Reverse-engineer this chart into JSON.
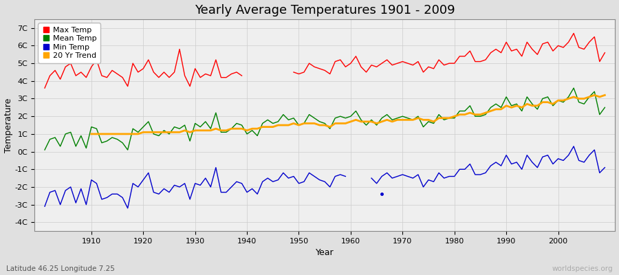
{
  "title": "Yearly Average Temperatures 1901 - 2009",
  "xlabel": "Year",
  "ylabel": "Temperature",
  "subtitle_left": "Latitude 46.25 Longitude 7.25",
  "subtitle_right": "worldspecies.org",
  "years": [
    1901,
    1902,
    1903,
    1904,
    1905,
    1906,
    1907,
    1908,
    1909,
    1910,
    1911,
    1912,
    1913,
    1914,
    1915,
    1916,
    1917,
    1918,
    1919,
    1920,
    1921,
    1922,
    1923,
    1924,
    1925,
    1926,
    1927,
    1928,
    1929,
    1930,
    1931,
    1932,
    1933,
    1934,
    1935,
    1936,
    1937,
    1938,
    1939,
    1940,
    1941,
    1942,
    1943,
    1944,
    1945,
    1946,
    1947,
    1948,
    1949,
    1950,
    1951,
    1952,
    1953,
    1954,
    1955,
    1956,
    1957,
    1958,
    1959,
    1960,
    1961,
    1962,
    1963,
    1964,
    1965,
    1966,
    1967,
    1968,
    1969,
    1970,
    1971,
    1972,
    1973,
    1974,
    1975,
    1976,
    1977,
    1978,
    1979,
    1980,
    1981,
    1982,
    1983,
    1984,
    1985,
    1986,
    1987,
    1988,
    1989,
    1990,
    1991,
    1992,
    1993,
    1994,
    1995,
    1996,
    1997,
    1998,
    1999,
    2000,
    2001,
    2002,
    2003,
    2004,
    2005,
    2006,
    2007,
    2008,
    2009
  ],
  "max_temp": [
    3.6,
    4.3,
    4.6,
    4.1,
    4.8,
    5.0,
    4.3,
    4.5,
    4.2,
    4.8,
    5.2,
    4.3,
    4.2,
    4.6,
    4.4,
    4.2,
    3.7,
    5.0,
    4.5,
    4.7,
    5.2,
    4.5,
    4.2,
    4.5,
    4.2,
    4.5,
    5.8,
    4.3,
    3.7,
    4.7,
    4.2,
    4.4,
    4.3,
    5.2,
    4.2,
    4.2,
    4.4,
    4.5,
    4.3,
    null,
    null,
    null,
    null,
    null,
    null,
    null,
    null,
    null,
    4.5,
    4.4,
    4.5,
    5.0,
    4.8,
    4.7,
    4.6,
    4.4,
    5.1,
    5.2,
    4.8,
    5.0,
    5.4,
    4.8,
    4.5,
    4.9,
    4.8,
    5.0,
    5.2,
    4.9,
    5.0,
    5.1,
    5.0,
    4.9,
    5.1,
    4.5,
    4.8,
    4.7,
    5.2,
    4.9,
    5.0,
    5.0,
    5.4,
    5.4,
    5.7,
    5.1,
    5.1,
    5.2,
    5.6,
    5.8,
    5.6,
    6.2,
    5.7,
    5.8,
    5.4,
    6.2,
    5.8,
    5.5,
    6.1,
    6.2,
    5.7,
    6.0,
    5.9,
    6.2,
    6.7,
    5.9,
    5.8,
    6.2,
    6.5,
    5.1,
    5.6
  ],
  "mean_temp": [
    0.1,
    0.7,
    0.8,
    0.3,
    1.0,
    1.1,
    0.3,
    0.9,
    0.2,
    1.4,
    1.3,
    0.5,
    0.6,
    0.8,
    0.7,
    0.5,
    0.1,
    1.3,
    1.1,
    1.4,
    1.7,
    1.0,
    0.9,
    1.2,
    1.0,
    1.4,
    1.3,
    1.5,
    0.6,
    1.6,
    1.4,
    1.7,
    1.3,
    2.2,
    1.1,
    1.1,
    1.3,
    1.6,
    1.5,
    1.0,
    1.2,
    0.9,
    1.6,
    1.8,
    1.6,
    1.7,
    2.1,
    1.8,
    1.9,
    1.5,
    1.6,
    2.1,
    1.9,
    1.7,
    1.6,
    1.3,
    1.9,
    2.0,
    1.9,
    2.0,
    2.3,
    1.8,
    1.5,
    1.8,
    1.5,
    1.9,
    2.1,
    1.8,
    1.9,
    2.0,
    1.9,
    1.8,
    2.0,
    1.4,
    1.7,
    1.6,
    2.1,
    1.8,
    1.9,
    1.9,
    2.3,
    2.3,
    2.6,
    2.0,
    2.0,
    2.1,
    2.5,
    2.7,
    2.5,
    3.1,
    2.6,
    2.7,
    2.3,
    3.1,
    2.7,
    2.4,
    3.0,
    3.1,
    2.6,
    2.9,
    2.8,
    3.1,
    3.6,
    2.8,
    2.7,
    3.1,
    3.4,
    2.1,
    2.5
  ],
  "min_temp": [
    -3.1,
    -2.3,
    -2.2,
    -3.0,
    -2.2,
    -2.0,
    -2.9,
    -2.1,
    -3.0,
    -1.6,
    -1.8,
    -2.7,
    -2.6,
    -2.4,
    -2.4,
    -2.6,
    -3.2,
    -1.8,
    -2.0,
    -1.6,
    -1.2,
    -2.3,
    -2.4,
    -2.1,
    -2.3,
    -1.9,
    -2.0,
    -1.8,
    -2.7,
    -1.8,
    -1.9,
    -1.5,
    -2.0,
    -0.9,
    -2.3,
    -2.3,
    -2.0,
    -1.7,
    -1.8,
    -2.3,
    -2.1,
    -2.4,
    -1.7,
    -1.5,
    -1.7,
    -1.6,
    -1.2,
    -1.5,
    -1.4,
    -1.8,
    -1.7,
    -1.2,
    -1.4,
    -1.6,
    -1.7,
    -2.0,
    -1.4,
    -1.3,
    -1.4,
    null,
    null,
    null,
    null,
    -1.5,
    -1.8,
    -1.4,
    -1.2,
    -1.5,
    -1.4,
    -1.3,
    -1.4,
    -1.5,
    -1.3,
    -2.0,
    -1.6,
    -1.7,
    -1.2,
    -1.5,
    -1.4,
    -1.4,
    -1.0,
    -1.0,
    -0.7,
    -1.3,
    -1.3,
    -1.2,
    -0.8,
    -0.6,
    -0.8,
    -0.2,
    -0.7,
    -0.6,
    -1.0,
    -0.2,
    -0.6,
    -0.9,
    -0.3,
    -0.2,
    -0.7,
    -0.4,
    -0.5,
    -0.2,
    0.3,
    -0.5,
    -0.6,
    -0.2,
    0.1,
    -1.2,
    -0.9
  ],
  "trend_years": [
    1910,
    1911,
    1912,
    1913,
    1914,
    1915,
    1916,
    1917,
    1918,
    1919,
    1920,
    1921,
    1922,
    1923,
    1924,
    1925,
    1926,
    1927,
    1928,
    1929,
    1930,
    1931,
    1932,
    1933,
    1934,
    1935,
    1936,
    1937,
    1938,
    1939,
    1940,
    1941,
    1942,
    1943,
    1944,
    1945,
    1946,
    1947,
    1948,
    1949,
    1950,
    1951,
    1952,
    1953,
    1954,
    1955,
    1956,
    1957,
    1958,
    1959,
    1960,
    1961,
    1962,
    1963,
    1964,
    1965,
    1966,
    1967,
    1968,
    1969,
    1970,
    1971,
    1972,
    1973,
    1974,
    1975,
    1976,
    1977,
    1978,
    1979,
    1980,
    1981,
    1982,
    1983,
    1984,
    1985,
    1986,
    1987,
    1988,
    1989,
    1990,
    1991,
    1992,
    1993,
    1994,
    1995,
    1996,
    1997,
    1998,
    1999,
    2000,
    2001,
    2002,
    2003,
    2004,
    2005,
    2006,
    2007,
    2008,
    2009
  ],
  "trend_vals": [
    1.0,
    1.0,
    1.0,
    1.0,
    1.0,
    1.0,
    1.0,
    1.0,
    1.0,
    1.0,
    1.1,
    1.1,
    1.1,
    1.1,
    1.1,
    1.1,
    1.1,
    1.1,
    1.2,
    1.1,
    1.2,
    1.2,
    1.2,
    1.2,
    1.3,
    1.2,
    1.2,
    1.3,
    1.3,
    1.3,
    1.2,
    1.3,
    1.3,
    1.4,
    1.4,
    1.4,
    1.5,
    1.5,
    1.5,
    1.6,
    1.5,
    1.6,
    1.6,
    1.6,
    1.5,
    1.5,
    1.4,
    1.6,
    1.6,
    1.6,
    1.7,
    1.8,
    1.7,
    1.7,
    1.7,
    1.6,
    1.7,
    1.8,
    1.7,
    1.8,
    1.8,
    1.8,
    1.8,
    1.9,
    1.8,
    1.8,
    1.7,
    1.9,
    1.9,
    1.9,
    2.0,
    2.1,
    2.1,
    2.2,
    2.1,
    2.1,
    2.2,
    2.3,
    2.4,
    2.4,
    2.6,
    2.5,
    2.6,
    2.5,
    2.7,
    2.6,
    2.6,
    2.8,
    2.8,
    2.7,
    2.9,
    2.9,
    3.0,
    3.1,
    3.0,
    3.0,
    3.1,
    3.2,
    3.1,
    3.2
  ],
  "dot_year": 1966,
  "dot_value": -2.4,
  "max_color": "#ff0000",
  "mean_color": "#008000",
  "min_color": "#0000cc",
  "trend_color": "#ffa500",
  "bg_color": "#e0e0e0",
  "plot_bg_color": "#efefef",
  "ylim": [
    -4.5,
    7.5
  ],
  "yticks": [
    -4,
    -3,
    -2,
    -1,
    0,
    1,
    2,
    3,
    4,
    5,
    6,
    7
  ],
  "ytick_labels": [
    "-4C",
    "-3C",
    "-2C",
    "-1C",
    "0C",
    "1C",
    "2C",
    "3C",
    "4C",
    "5C",
    "6C",
    "7C"
  ],
  "xlim": [
    1899,
    2011
  ],
  "xticks": [
    1910,
    1920,
    1930,
    1940,
    1950,
    1960,
    1970,
    1980,
    1990,
    2000
  ],
  "title_fontsize": 13,
  "axis_label_fontsize": 9,
  "tick_fontsize": 8,
  "legend_fontsize": 8
}
